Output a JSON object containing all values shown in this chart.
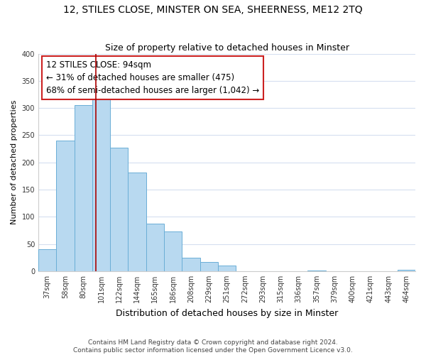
{
  "title": "12, STILES CLOSE, MINSTER ON SEA, SHEERNESS, ME12 2TQ",
  "subtitle": "Size of property relative to detached houses in Minster",
  "xlabel": "Distribution of detached houses by size in Minster",
  "ylabel": "Number of detached properties",
  "categories": [
    "37sqm",
    "58sqm",
    "80sqm",
    "101sqm",
    "122sqm",
    "144sqm",
    "165sqm",
    "186sqm",
    "208sqm",
    "229sqm",
    "251sqm",
    "272sqm",
    "293sqm",
    "315sqm",
    "336sqm",
    "357sqm",
    "379sqm",
    "400sqm",
    "421sqm",
    "443sqm",
    "464sqm"
  ],
  "values": [
    40,
    240,
    305,
    325,
    227,
    181,
    87,
    73,
    25,
    17,
    10,
    0,
    0,
    0,
    0,
    1,
    0,
    0,
    0,
    0,
    2
  ],
  "bar_color": "#b8d9f0",
  "bar_edge_color": "#6aaed6",
  "vline_position": 2.72,
  "vline_color": "#aa0000",
  "ann_line1": "12 STILES CLOSE: 94sqm",
  "ann_line2": "← 31% of detached houses are smaller (475)",
  "ann_line3": "68% of semi-detached houses are larger (1,042) →",
  "ann_box_facecolor": "#ffffff",
  "ann_box_edgecolor": "#cc2222",
  "ylim_max": 400,
  "yticks": [
    0,
    50,
    100,
    150,
    200,
    250,
    300,
    350,
    400
  ],
  "footer_line1": "Contains HM Land Registry data © Crown copyright and database right 2024.",
  "footer_line2": "Contains public sector information licensed under the Open Government Licence v3.0.",
  "grid_color": "#d5dff0",
  "title_fontsize": 10,
  "subtitle_fontsize": 9,
  "tick_fontsize": 7,
  "ylabel_fontsize": 8,
  "xlabel_fontsize": 9,
  "ann_fontsize": 8.5,
  "footer_fontsize": 6.5
}
